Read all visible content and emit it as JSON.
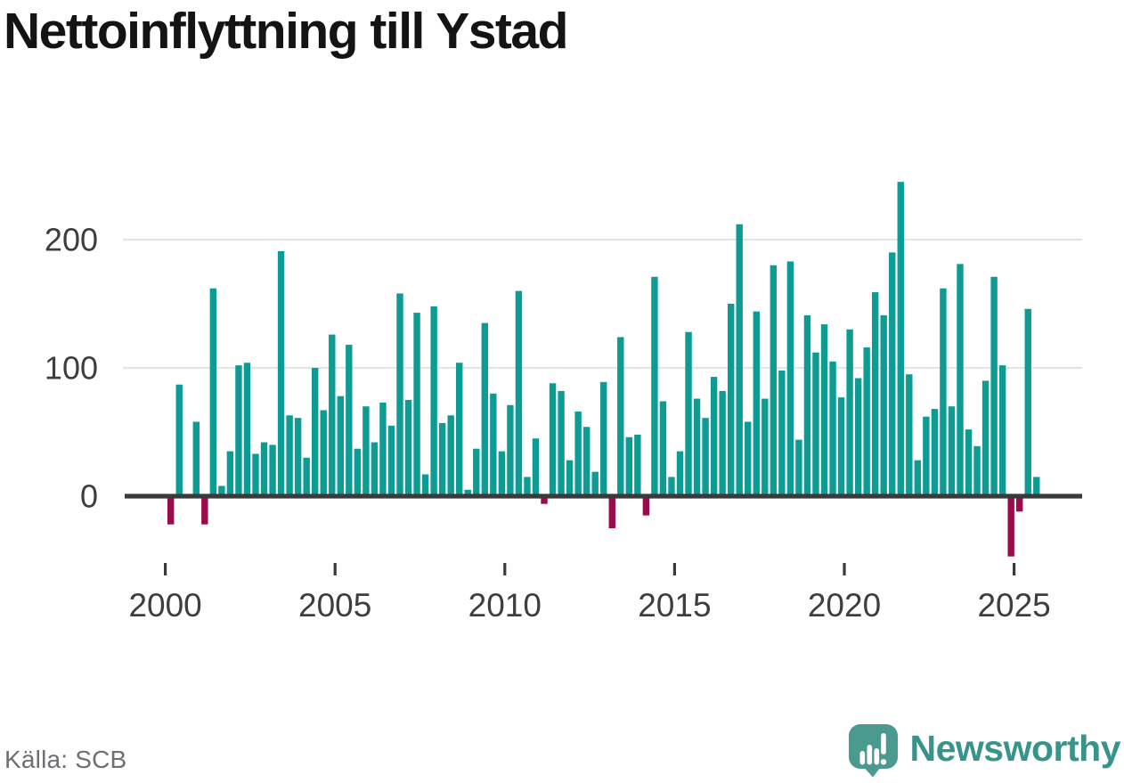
{
  "title": "Nettoinflyttning till Ystad",
  "source": {
    "label": "Källa: SCB"
  },
  "branding": {
    "name": "Newsworthy",
    "icon": "speech-bubble-with-bar-chart-and-exclamation"
  },
  "colors": {
    "positive_bar": "#0d9c94",
    "negative_bar": "#9b0a4a",
    "axis_line": "#3a3a3a",
    "gridline": "#e4e4e4",
    "axis_text": "#3e3e40",
    "title_text": "#141414",
    "source_text": "#6e6e73",
    "brand_text": "#38948a",
    "brand_logo": "#4a9a90",
    "background": "#ffffff"
  },
  "chart_data": {
    "type": "bar",
    "title": "Nettoinflyttning till Ystad",
    "x_unit": "quarter",
    "start_year": 2000,
    "start_quarter": 1,
    "end_period": "2025 Q3",
    "values": [
      -22,
      87,
      1,
      58,
      -22,
      162,
      8,
      35,
      102,
      104,
      33,
      42,
      40,
      191,
      63,
      61,
      30,
      100,
      67,
      126,
      78,
      118,
      37,
      70,
      42,
      73,
      55,
      158,
      75,
      143,
      17,
      148,
      57,
      63,
      104,
      5,
      37,
      135,
      80,
      35,
      71,
      160,
      15,
      45,
      -6,
      88,
      82,
      28,
      66,
      54,
      19,
      89,
      -25,
      124,
      46,
      48,
      -15,
      171,
      74,
      15,
      35,
      128,
      76,
      61,
      93,
      82,
      150,
      212,
      58,
      144,
      76,
      180,
      98,
      183,
      44,
      141,
      112,
      134,
      105,
      77,
      130,
      92,
      116,
      159,
      141,
      190,
      245,
      95,
      28,
      62,
      68,
      162,
      70,
      181,
      52,
      39,
      90,
      171,
      102,
      -47,
      -12,
      146,
      15
    ],
    "yticks": [
      0,
      100,
      200
    ],
    "ylim": [
      -60,
      260
    ],
    "xticks": [
      2000,
      2005,
      2010,
      2015,
      2020,
      2025
    ],
    "grid": "horizontal-only",
    "legend": false,
    "positive_color": "#0d9c94",
    "negative_color": "#9b0a4a"
  }
}
